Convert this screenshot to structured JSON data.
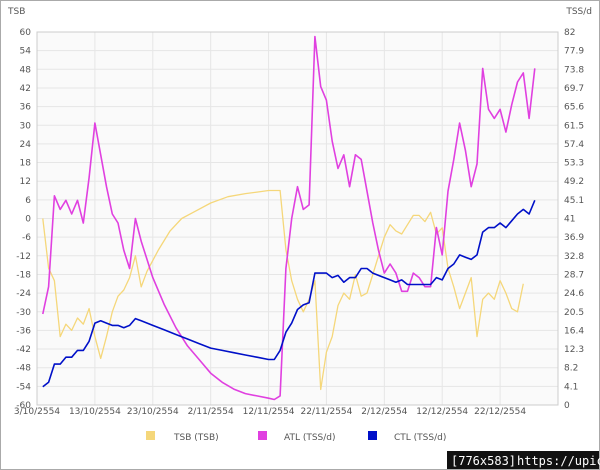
{
  "chart_data": {
    "type": "line",
    "left_axis_title": "TSB",
    "right_axis_title": "TSS/d",
    "left_ticks": [
      "60",
      "54",
      "48",
      "42",
      "36",
      "30",
      "24",
      "18",
      "12",
      "6",
      "0",
      "-6",
      "-12",
      "-18",
      "-24",
      "-30",
      "-36",
      "-42",
      "-48",
      "-54",
      "-60"
    ],
    "right_ticks": [
      "82",
      "77.9",
      "73.8",
      "69.7",
      "65.6",
      "61.5",
      "57.4",
      "53.3",
      "49.2",
      "45.1",
      "41",
      "36.9",
      "32.8",
      "28.7",
      "24.6",
      "20.5",
      "16.4",
      "12.3",
      "8.2",
      "4.1",
      "0"
    ],
    "left_ylim": [
      -60,
      60
    ],
    "right_ylim": [
      0,
      82
    ],
    "xlim": [
      0,
      90
    ],
    "x_ticks": [
      {
        "day": 0,
        "label": "3/10/2554"
      },
      {
        "day": 10,
        "label": "13/10/2554"
      },
      {
        "day": 20,
        "label": "23/10/2554"
      },
      {
        "day": 30,
        "label": "2/11/2554"
      },
      {
        "day": 40,
        "label": "12/11/2554"
      },
      {
        "day": 50,
        "label": "22/11/2554"
      },
      {
        "day": 60,
        "label": "2/12/2554"
      },
      {
        "day": 70,
        "label": "12/12/2554"
      },
      {
        "day": 80,
        "label": "22/12/2554"
      }
    ],
    "grid": true,
    "legend_position": "bottom",
    "series": [
      {
        "name": "TSB (TSB)",
        "color": "#f5d77a",
        "axis": "left",
        "points": [
          [
            1,
            0
          ],
          [
            2,
            -16
          ],
          [
            3,
            -20
          ],
          [
            4,
            -38
          ],
          [
            5,
            -34
          ],
          [
            6,
            -36
          ],
          [
            7,
            -32
          ],
          [
            8,
            -34
          ],
          [
            9,
            -29
          ],
          [
            10,
            -38
          ],
          [
            11,
            -45
          ],
          [
            12,
            -38
          ],
          [
            13,
            -30
          ],
          [
            14,
            -25
          ],
          [
            15,
            -23
          ],
          [
            16,
            -19
          ],
          [
            17,
            -12
          ],
          [
            18,
            -22
          ],
          [
            19,
            -17
          ],
          [
            21,
            -10
          ],
          [
            23,
            -4
          ],
          [
            25,
            0
          ],
          [
            27,
            2
          ],
          [
            30,
            5
          ],
          [
            33,
            7
          ],
          [
            36,
            8
          ],
          [
            38,
            8.5
          ],
          [
            40,
            9
          ],
          [
            42,
            9
          ],
          [
            43,
            -10
          ],
          [
            44,
            -20
          ],
          [
            45,
            -26
          ],
          [
            46,
            -30
          ],
          [
            47,
            -26
          ],
          [
            48,
            -20
          ],
          [
            49,
            -55
          ],
          [
            50,
            -43
          ],
          [
            51,
            -38
          ],
          [
            52,
            -28
          ],
          [
            53,
            -24
          ],
          [
            54,
            -26
          ],
          [
            55,
            -18
          ],
          [
            56,
            -25
          ],
          [
            57,
            -24
          ],
          [
            58,
            -18
          ],
          [
            59,
            -12
          ],
          [
            60,
            -6
          ],
          [
            61,
            -2
          ],
          [
            62,
            -4
          ],
          [
            63,
            -5
          ],
          [
            64,
            -2
          ],
          [
            65,
            1
          ],
          [
            66,
            1
          ],
          [
            67,
            -1
          ],
          [
            68,
            2
          ],
          [
            69,
            -5
          ],
          [
            70,
            -3
          ],
          [
            71,
            -16
          ],
          [
            72,
            -22
          ],
          [
            73,
            -29
          ],
          [
            74,
            -24
          ],
          [
            75,
            -19
          ],
          [
            76,
            -38
          ],
          [
            77,
            -26
          ],
          [
            78,
            -24
          ],
          [
            79,
            -26
          ],
          [
            80,
            -20
          ],
          [
            81,
            -24
          ],
          [
            82,
            -29
          ],
          [
            83,
            -30
          ],
          [
            84,
            -21
          ]
        ]
      },
      {
        "name": "ATL (TSS/d)",
        "color": "#e040e0",
        "axis": "right",
        "points": [
          [
            1,
            20
          ],
          [
            2,
            26
          ],
          [
            3,
            46
          ],
          [
            4,
            43
          ],
          [
            5,
            45
          ],
          [
            6,
            42
          ],
          [
            7,
            45
          ],
          [
            8,
            40
          ],
          [
            9,
            50
          ],
          [
            10,
            62
          ],
          [
            11,
            55
          ],
          [
            12,
            48
          ],
          [
            13,
            42
          ],
          [
            14,
            40
          ],
          [
            15,
            34
          ],
          [
            16,
            30
          ],
          [
            17,
            41
          ],
          [
            18,
            36
          ],
          [
            20,
            28
          ],
          [
            22,
            22
          ],
          [
            24,
            17
          ],
          [
            26,
            13
          ],
          [
            28,
            10
          ],
          [
            30,
            7
          ],
          [
            32,
            5
          ],
          [
            34,
            3.5
          ],
          [
            36,
            2.5
          ],
          [
            38,
            2
          ],
          [
            40,
            1.5
          ],
          [
            41,
            1.2
          ],
          [
            42,
            2
          ],
          [
            43,
            30
          ],
          [
            44,
            41
          ],
          [
            45,
            48
          ],
          [
            46,
            43
          ],
          [
            47,
            44
          ],
          [
            48,
            81
          ],
          [
            49,
            70
          ],
          [
            50,
            67
          ],
          [
            51,
            58
          ],
          [
            52,
            52
          ],
          [
            53,
            55
          ],
          [
            54,
            48
          ],
          [
            55,
            55
          ],
          [
            56,
            54
          ],
          [
            57,
            47
          ],
          [
            58,
            40
          ],
          [
            59,
            34
          ],
          [
            60,
            29
          ],
          [
            61,
            31
          ],
          [
            62,
            29
          ],
          [
            63,
            25
          ],
          [
            64,
            25
          ],
          [
            65,
            29
          ],
          [
            66,
            28
          ],
          [
            67,
            26
          ],
          [
            68,
            26
          ],
          [
            69,
            39
          ],
          [
            70,
            33
          ],
          [
            71,
            47
          ],
          [
            72,
            54
          ],
          [
            73,
            62
          ],
          [
            74,
            56
          ],
          [
            75,
            48
          ],
          [
            76,
            53
          ],
          [
            77,
            74
          ],
          [
            78,
            65
          ],
          [
            79,
            63
          ],
          [
            80,
            65
          ],
          [
            81,
            60
          ],
          [
            82,
            66
          ],
          [
            83,
            71
          ],
          [
            84,
            73
          ],
          [
            85,
            63
          ],
          [
            86,
            74
          ]
        ]
      },
      {
        "name": "CTL (TSS/d)",
        "color": "#0010c8",
        "axis": "right",
        "points": [
          [
            1,
            4
          ],
          [
            2,
            5
          ],
          [
            3,
            9
          ],
          [
            4,
            9
          ],
          [
            5,
            10.5
          ],
          [
            6,
            10.5
          ],
          [
            7,
            12
          ],
          [
            8,
            12
          ],
          [
            9,
            14
          ],
          [
            10,
            18
          ],
          [
            11,
            18.5
          ],
          [
            12,
            18
          ],
          [
            13,
            17.5
          ],
          [
            14,
            17.5
          ],
          [
            15,
            17
          ],
          [
            16,
            17.5
          ],
          [
            17,
            19
          ],
          [
            18,
            18.5
          ],
          [
            20,
            17.5
          ],
          [
            22,
            16.5
          ],
          [
            24,
            15.5
          ],
          [
            26,
            14.5
          ],
          [
            28,
            13.5
          ],
          [
            30,
            12.5
          ],
          [
            32,
            12
          ],
          [
            34,
            11.5
          ],
          [
            36,
            11
          ],
          [
            38,
            10.5
          ],
          [
            40,
            10
          ],
          [
            41,
            10
          ],
          [
            42,
            12
          ],
          [
            43,
            16
          ],
          [
            44,
            18
          ],
          [
            45,
            21
          ],
          [
            46,
            22
          ],
          [
            47,
            22.5
          ],
          [
            48,
            29
          ],
          [
            49,
            29
          ],
          [
            50,
            29
          ],
          [
            51,
            28
          ],
          [
            52,
            28.5
          ],
          [
            53,
            27
          ],
          [
            54,
            28
          ],
          [
            55,
            28
          ],
          [
            56,
            30
          ],
          [
            57,
            30
          ],
          [
            58,
            29
          ],
          [
            59,
            28.5
          ],
          [
            60,
            28
          ],
          [
            61,
            27.5
          ],
          [
            62,
            27
          ],
          [
            63,
            27.5
          ],
          [
            64,
            26.5
          ],
          [
            65,
            26.5
          ],
          [
            66,
            26.5
          ],
          [
            67,
            26.5
          ],
          [
            68,
            26.5
          ],
          [
            69,
            28
          ],
          [
            70,
            27.5
          ],
          [
            71,
            30
          ],
          [
            72,
            31
          ],
          [
            73,
            33
          ],
          [
            74,
            32.5
          ],
          [
            75,
            32
          ],
          [
            76,
            33
          ],
          [
            77,
            38
          ],
          [
            78,
            39
          ],
          [
            79,
            39
          ],
          [
            80,
            40
          ],
          [
            81,
            39
          ],
          [
            82,
            40.5
          ],
          [
            83,
            42
          ],
          [
            84,
            43
          ],
          [
            85,
            42
          ],
          [
            86,
            45
          ]
        ]
      }
    ]
  },
  "watermark": {
    "size_label": "[776x583]",
    "url": "https://upic.me/"
  }
}
